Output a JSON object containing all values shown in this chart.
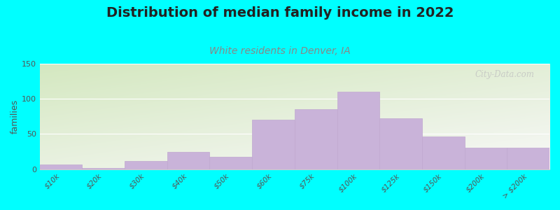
{
  "title": "Distribution of median family income in 2022",
  "subtitle": "White residents in Denver, IA",
  "ylabel": "families",
  "categories": [
    "$10k",
    "$20k",
    "$30k",
    "$40k",
    "$50k",
    "$60k",
    "$75k",
    "$100k",
    "$125k",
    "$150k",
    "$200k",
    "> $200k"
  ],
  "values": [
    7,
    2,
    12,
    25,
    18,
    70,
    85,
    110,
    72,
    46,
    30,
    30
  ],
  "bar_color": "#c9b3d9",
  "bar_edge_color": "#c0a8d0",
  "background_color": "#00ffff",
  "plot_bg_gradient_top_left": "#d4e8c0",
  "plot_bg_gradient_bottom_right": "#f8f8f8",
  "title_fontsize": 14,
  "subtitle_fontsize": 10,
  "subtitle_color": "#888888",
  "ylim": [
    0,
    150
  ],
  "yticks": [
    0,
    50,
    100,
    150
  ],
  "watermark": "City-Data.com",
  "watermark_color": "#c0c0c0"
}
